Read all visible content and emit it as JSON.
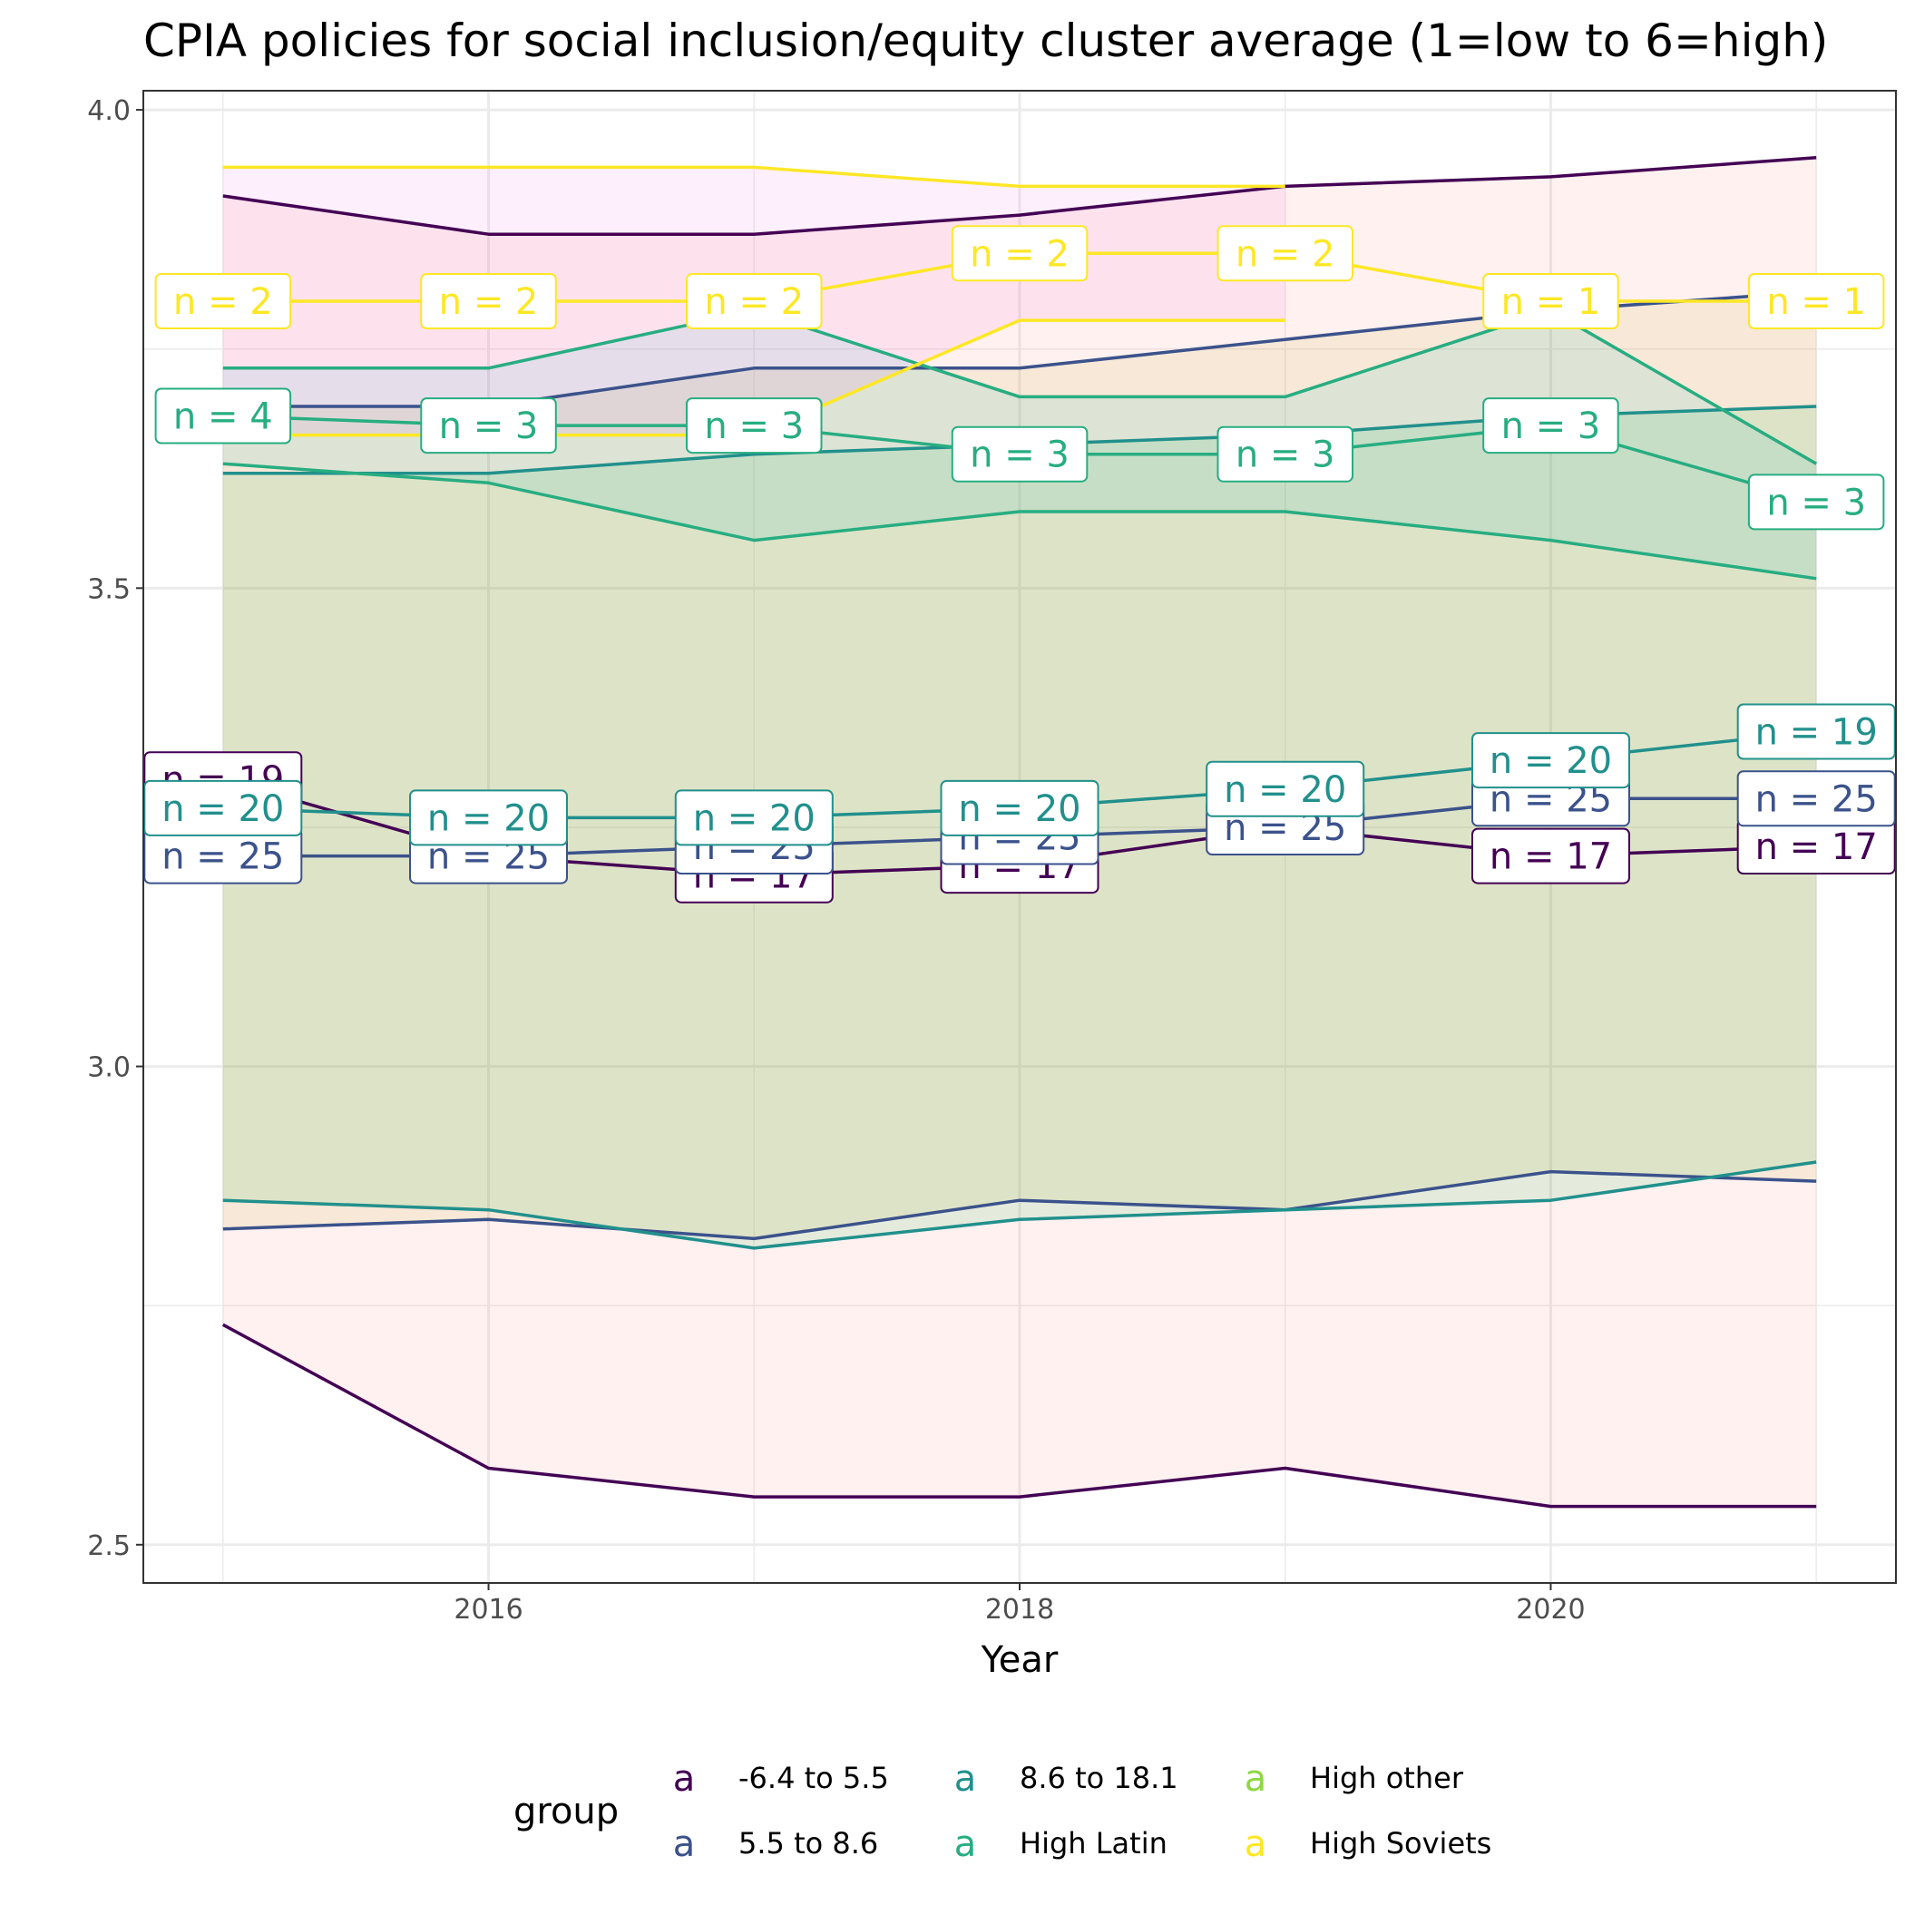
{
  "chart_data": {
    "type": "line",
    "title": "CPIA policies for social inclusion/equity cluster average (1=low to 6=high)",
    "xlabel": "Year",
    "ylabel": "",
    "xlim": [
      2014.7,
      2021.3
    ],
    "ylim": [
      2.46,
      4.02
    ],
    "x_ticks": [
      2016,
      2018,
      2020
    ],
    "y_ticks": [
      2.5,
      3.0,
      3.5,
      4.0
    ],
    "y_tick_labels": [
      "2.5",
      "3.0",
      "3.5",
      "4.0"
    ],
    "grid": true,
    "legend": {
      "title": "group",
      "position": "bottom",
      "key_glyph": "a"
    },
    "series": [
      {
        "name": "-6.4 to 5.5",
        "color": "#440154",
        "band_color": "#f8766d",
        "x": [
          2015,
          2016,
          2017,
          2018,
          2019,
          2020,
          2021
        ],
        "mean": [
          3.3,
          3.22,
          3.2,
          3.21,
          3.25,
          3.22,
          3.23
        ],
        "upper": [
          3.91,
          3.87,
          3.87,
          3.89,
          3.92,
          3.93,
          3.95
        ],
        "lower": [
          2.73,
          2.58,
          2.55,
          2.55,
          2.58,
          2.54,
          2.54
        ],
        "n": [
          19,
          null,
          17,
          17,
          null,
          17,
          17
        ]
      },
      {
        "name": "5.5 to 8.6",
        "color": "#3b528b",
        "band_color": "#b79f00",
        "x": [
          2015,
          2016,
          2017,
          2018,
          2019,
          2020,
          2021
        ],
        "mean": [
          3.22,
          3.22,
          3.23,
          3.24,
          3.25,
          3.28,
          3.28
        ],
        "upper": [
          3.69,
          3.69,
          3.73,
          3.73,
          3.76,
          3.79,
          3.81
        ],
        "lower": [
          2.83,
          2.84,
          2.82,
          2.86,
          2.85,
          2.89,
          2.88
        ],
        "n": [
          25,
          25,
          25,
          25,
          25,
          25,
          25
        ]
      },
      {
        "name": "8.6 to 18.1",
        "color": "#21908c",
        "band_color": "#00ba38",
        "x": [
          2015,
          2016,
          2017,
          2018,
          2019,
          2020,
          2021
        ],
        "mean": [
          3.27,
          3.26,
          3.26,
          3.27,
          3.29,
          3.32,
          3.35
        ],
        "upper": [
          3.62,
          3.62,
          3.64,
          3.65,
          3.66,
          3.68,
          3.69
        ],
        "lower": [
          2.86,
          2.85,
          2.81,
          2.84,
          2.85,
          2.86,
          2.9
        ],
        "n": [
          20,
          20,
          20,
          20,
          20,
          20,
          19
        ]
      },
      {
        "name": "High Latin",
        "color": "#27ad81",
        "band_color": "#00bfc4",
        "x": [
          2015,
          2016,
          2017,
          2018,
          2019,
          2020,
          2021
        ],
        "mean": [
          3.68,
          3.67,
          3.67,
          3.64,
          3.64,
          3.67,
          3.59
        ],
        "upper": [
          3.73,
          3.73,
          3.79,
          3.7,
          3.7,
          3.79,
          3.63
        ],
        "lower": [
          3.63,
          3.61,
          3.55,
          3.58,
          3.58,
          3.55,
          3.51
        ],
        "n": [
          4,
          3,
          3,
          3,
          3,
          3,
          3
        ]
      },
      {
        "name": "High other",
        "color": "#8fd744",
        "band_color": "#619cff",
        "x": [],
        "mean": [],
        "upper": [],
        "lower": [],
        "n": []
      },
      {
        "name": "High Soviets",
        "color": "#fde725",
        "band_color": "#f564e3",
        "x": [
          2015,
          2016,
          2017,
          2018,
          2019,
          2020,
          2021
        ],
        "mean": [
          3.8,
          3.8,
          3.8,
          3.85,
          3.85,
          3.8,
          3.8
        ],
        "upper": [
          3.94,
          3.94,
          3.94,
          3.92,
          3.92,
          null,
          null
        ],
        "lower": [
          3.66,
          3.66,
          3.66,
          3.78,
          3.78,
          null,
          null
        ],
        "n": [
          2,
          2,
          2,
          2,
          2,
          1,
          1
        ]
      }
    ]
  }
}
